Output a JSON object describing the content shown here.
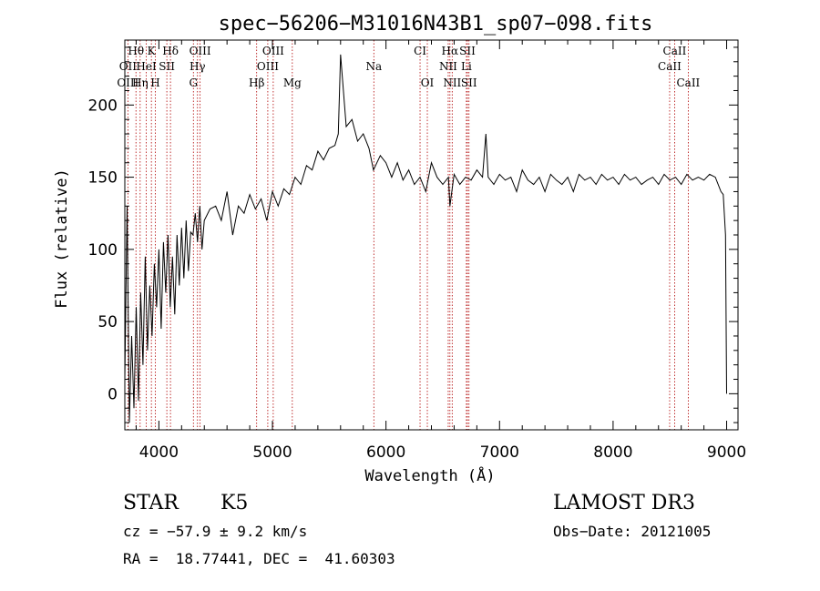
{
  "chart_data": {
    "type": "line",
    "title": "spec−56206−M31016N43B1_sp07−098.fits",
    "xlabel": "Wavelength (Å)",
    "ylabel": "Flux (relative)",
    "xlim": [
      3700,
      9100
    ],
    "ylim": [
      -25,
      245
    ],
    "xticks": [
      4000,
      5000,
      6000,
      7000,
      8000,
      9000
    ],
    "yticks": [
      0,
      50,
      100,
      150,
      200
    ],
    "grid": false,
    "series": [
      {
        "name": "flux",
        "x": [
          3700,
          3720,
          3740,
          3760,
          3780,
          3800,
          3820,
          3840,
          3860,
          3880,
          3900,
          3920,
          3940,
          3960,
          3980,
          4000,
          4020,
          4040,
          4060,
          4080,
          4100,
          4120,
          4140,
          4160,
          4180,
          4200,
          4220,
          4240,
          4260,
          4280,
          4300,
          4320,
          4340,
          4360,
          4380,
          4400,
          4450,
          4500,
          4550,
          4600,
          4650,
          4700,
          4750,
          4800,
          4850,
          4900,
          4950,
          5000,
          5050,
          5100,
          5150,
          5200,
          5250,
          5300,
          5350,
          5400,
          5450,
          5500,
          5550,
          5580,
          5600,
          5650,
          5700,
          5750,
          5800,
          5850,
          5890,
          5950,
          6000,
          6050,
          6100,
          6150,
          6200,
          6250,
          6300,
          6350,
          6400,
          6450,
          6500,
          6550,
          6563,
          6600,
          6650,
          6700,
          6750,
          6800,
          6850,
          6880,
          6900,
          6950,
          7000,
          7050,
          7100,
          7150,
          7200,
          7250,
          7300,
          7350,
          7400,
          7450,
          7500,
          7550,
          7600,
          7650,
          7700,
          7750,
          7800,
          7850,
          7900,
          7950,
          8000,
          8050,
          8100,
          8150,
          8200,
          8250,
          8300,
          8350,
          8400,
          8450,
          8500,
          8550,
          8600,
          8650,
          8700,
          8750,
          8800,
          8850,
          8900,
          8950,
          8970,
          8990,
          9000
        ],
        "values": [
          10,
          130,
          -20,
          40,
          -10,
          60,
          -5,
          70,
          20,
          95,
          30,
          75,
          40,
          90,
          60,
          100,
          45,
          105,
          70,
          110,
          60,
          95,
          55,
          110,
          75,
          115,
          80,
          120,
          85,
          112,
          110,
          125,
          105,
          130,
          100,
          120,
          128,
          130,
          120,
          140,
          110,
          130,
          125,
          138,
          128,
          135,
          120,
          140,
          130,
          142,
          138,
          150,
          145,
          158,
          155,
          168,
          162,
          170,
          172,
          180,
          235,
          185,
          190,
          175,
          180,
          170,
          155,
          165,
          160,
          150,
          160,
          148,
          155,
          145,
          150,
          140,
          160,
          150,
          145,
          150,
          130,
          152,
          145,
          150,
          148,
          155,
          150,
          180,
          150,
          145,
          152,
          148,
          150,
          140,
          155,
          148,
          145,
          150,
          140,
          152,
          148,
          145,
          150,
          140,
          152,
          148,
          150,
          145,
          152,
          148,
          150,
          145,
          152,
          148,
          150,
          145,
          148,
          150,
          145,
          152,
          148,
          150,
          145,
          152,
          148,
          150,
          148,
          152,
          150,
          140,
          138,
          110,
          0
        ]
      }
    ],
    "spectral_lines": [
      {
        "label": "Hθ",
        "wave": 3798,
        "row": 1
      },
      {
        "label": "K",
        "wave": 3934,
        "row": 1
      },
      {
        "label": "Hδ",
        "wave": 4102,
        "row": 1
      },
      {
        "label": "OIII",
        "wave": 4363,
        "row": 1
      },
      {
        "label": "OIII",
        "wave": 5007,
        "row": 1
      },
      {
        "label": "CI",
        "wave": 6300,
        "row": 1
      },
      {
        "label": "Hα",
        "wave": 6563,
        "row": 1
      },
      {
        "label": "SII",
        "wave": 6717,
        "row": 1
      },
      {
        "label": "CaII",
        "wave": 8542,
        "row": 1
      },
      {
        "label": "OII",
        "wave": 3727,
        "row": 2
      },
      {
        "label": "HeI",
        "wave": 3889,
        "row": 2
      },
      {
        "label": "SII",
        "wave": 4070,
        "row": 2
      },
      {
        "label": "Hγ",
        "wave": 4340,
        "row": 2
      },
      {
        "label": "OIII",
        "wave": 4959,
        "row": 2
      },
      {
        "label": "Na",
        "wave": 5893,
        "row": 2
      },
      {
        "label": "NII",
        "wave": 6548,
        "row": 2
      },
      {
        "label": "Li",
        "wave": 6708,
        "row": 2
      },
      {
        "label": "CaII",
        "wave": 8498,
        "row": 2
      },
      {
        "label": "OIII",
        "wave": 3727,
        "row": 3
      },
      {
        "label": "Hη",
        "wave": 3835,
        "row": 3
      },
      {
        "label": "H",
        "wave": 3969,
        "row": 3
      },
      {
        "label": "G",
        "wave": 4304,
        "row": 3
      },
      {
        "label": "Hβ",
        "wave": 4861,
        "row": 3
      },
      {
        "label": "Mg",
        "wave": 5175,
        "row": 3
      },
      {
        "label": "OI",
        "wave": 6364,
        "row": 3
      },
      {
        "label": "NII",
        "wave": 6583,
        "row": 3
      },
      {
        "label": "SII",
        "wave": 6731,
        "row": 3
      },
      {
        "label": "CaII",
        "wave": 8662,
        "row": 3
      }
    ],
    "line_markers": [
      3727,
      3798,
      3835,
      3889,
      3934,
      3969,
      4070,
      4102,
      4304,
      4340,
      4363,
      4861,
      4959,
      5007,
      5175,
      5893,
      6300,
      6364,
      6548,
      6563,
      6583,
      6708,
      6717,
      6731,
      8498,
      8542,
      8662
    ]
  },
  "info": {
    "object_class": "STAR",
    "subclass": "K5",
    "survey": "LAMOST DR3",
    "cz": "cz = −57.9 ± 9.2 km/s",
    "obs_date": "Obs−Date: 20121005",
    "radec": "RA =  18.77441, DEC =  41.60303"
  },
  "colors": {
    "marker": "#b00000",
    "line": "#000000"
  }
}
